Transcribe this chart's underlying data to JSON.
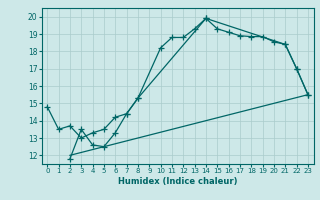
{
  "xlabel": "Humidex (Indice chaleur)",
  "bg_color": "#cde8e8",
  "grid_color": "#aacccc",
  "line_color": "#006666",
  "xlim": [
    -0.5,
    23.5
  ],
  "ylim": [
    11.5,
    20.5
  ],
  "xticks": [
    0,
    1,
    2,
    3,
    4,
    5,
    6,
    7,
    8,
    9,
    10,
    11,
    12,
    13,
    14,
    15,
    16,
    17,
    18,
    19,
    20,
    21,
    22,
    23
  ],
  "yticks": [
    12,
    13,
    14,
    15,
    16,
    17,
    18,
    19,
    20
  ],
  "line1_x": [
    0,
    1,
    2,
    3,
    4,
    5,
    6,
    7,
    8,
    10,
    11,
    12,
    13,
    14,
    15,
    16,
    17,
    18,
    19,
    20,
    21,
    22,
    23
  ],
  "line1_y": [
    14.8,
    13.5,
    13.7,
    13.0,
    13.3,
    13.5,
    14.2,
    14.4,
    15.3,
    18.2,
    18.8,
    18.8,
    19.3,
    19.9,
    19.3,
    19.1,
    18.9,
    18.85,
    18.85,
    18.55,
    18.4,
    17.0,
    15.5
  ],
  "line2_x": [
    2,
    3,
    4,
    5,
    6,
    7,
    8,
    14,
    21,
    22,
    23
  ],
  "line2_y": [
    11.8,
    13.5,
    12.6,
    12.5,
    13.3,
    14.4,
    15.3,
    19.9,
    18.4,
    17.0,
    15.5
  ],
  "line3_x": [
    2,
    23
  ],
  "line3_y": [
    12.0,
    15.5
  ],
  "xlabel_fontsize": 6,
  "tick_fontsize": 5
}
